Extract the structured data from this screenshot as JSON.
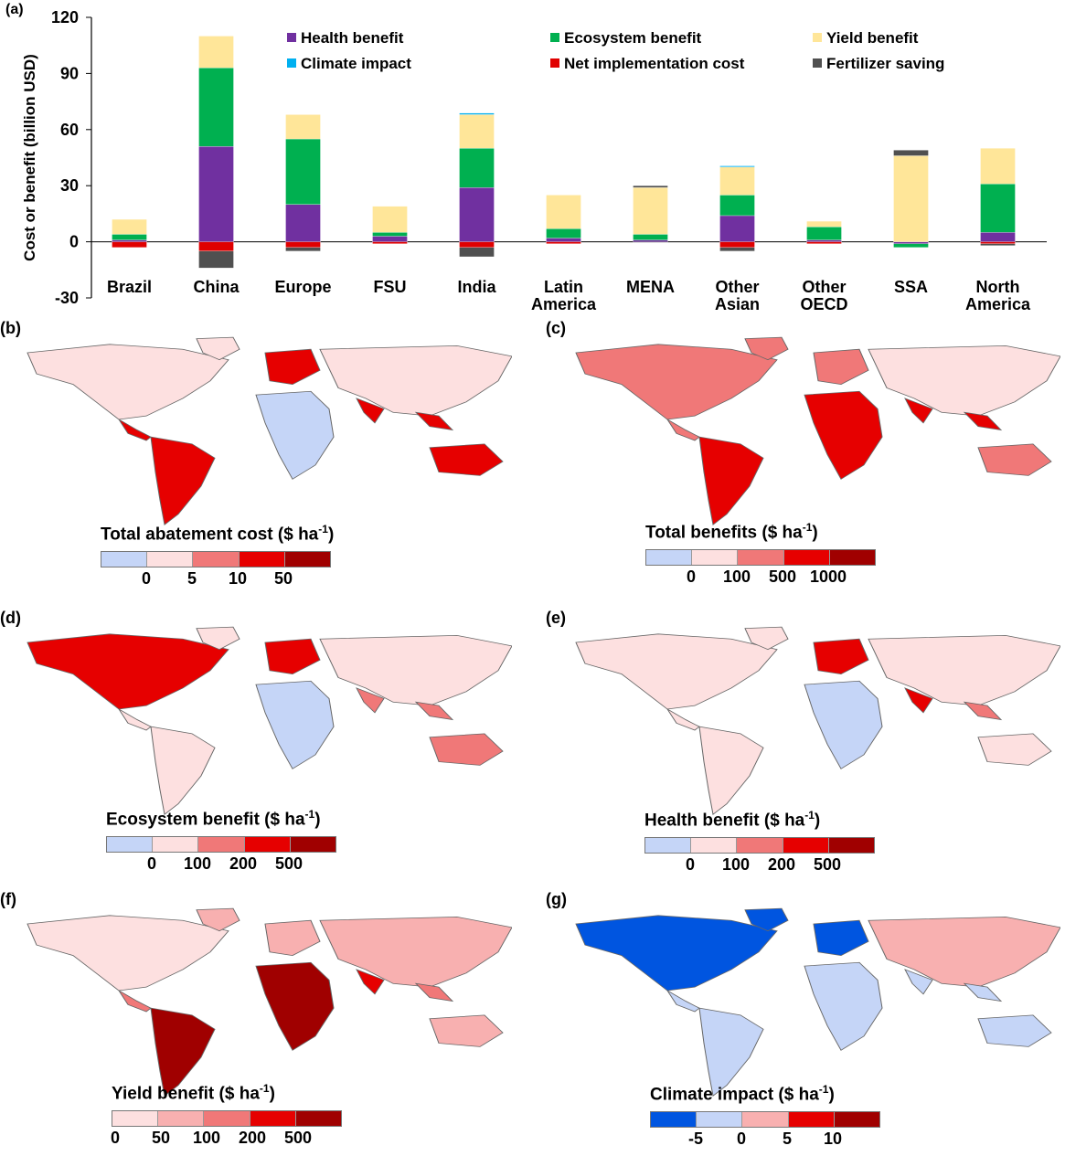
{
  "chart_data": {
    "type": "bar",
    "panel_label": "(a)",
    "stacked": true,
    "ylabel": "Cost or benefit (billion USD)",
    "ylim": [
      -30,
      120
    ],
    "yticks": [
      "120",
      "90",
      "60",
      "30",
      "0",
      "-30"
    ],
    "yticks_values": [
      120,
      90,
      60,
      30,
      0,
      -30
    ],
    "categories": [
      "Brazil",
      "China",
      "Europe",
      "FSU",
      "India",
      "Latin\nAmerica",
      "MENA",
      "Other\nAsian",
      "Other\nOECD",
      "SSA",
      "North\nAmerica"
    ],
    "series": [
      {
        "name": "Health benefit",
        "color": "#7030a0",
        "values": [
          1,
          51,
          20,
          3,
          29,
          2,
          1,
          14,
          1,
          -1,
          5
        ]
      },
      {
        "name": "Ecosystem benefit",
        "color": "#00b050",
        "values": [
          3,
          42,
          35,
          2,
          21,
          5,
          3,
          11,
          7,
          -2,
          26
        ]
      },
      {
        "name": "Yield benefit",
        "color": "#ffe699",
        "values": [
          8,
          17,
          13,
          14,
          18,
          18,
          25,
          15,
          3,
          46,
          19
        ]
      },
      {
        "name": "Climate impact",
        "color": "#00b0f0",
        "values": [
          0,
          0,
          0,
          0,
          0.8,
          0,
          0,
          0.6,
          0,
          0,
          0
        ]
      },
      {
        "name": "Net implementation cost",
        "color": "#e00000",
        "values": [
          -3,
          -5,
          -3,
          -1,
          -3,
          -1,
          0,
          -3,
          -1,
          0,
          -1
        ]
      },
      {
        "name": "Fertilizer saving",
        "color": "#505050",
        "values": [
          0,
          -9,
          -2,
          0,
          -5,
          0,
          1,
          -2,
          0,
          3,
          -1
        ]
      }
    ],
    "legend_order": [
      "Health benefit",
      "Ecosystem benefit",
      "Yield benefit",
      "Climate impact",
      "Net implementation cost",
      "Fertilizer saving"
    ],
    "legend_placement": "top-right, inside plot"
  },
  "maps": [
    {
      "id": "b",
      "label": "(b)",
      "title": "Total abatement cost ($ ha",
      "unit_sup": "-1",
      "title_end": ")",
      "colors": [
        "#c5d5f7",
        "#fde0e0",
        "#f07878",
        "#e60000",
        "#a00000"
      ],
      "ticks": [
        "0",
        "5",
        "10",
        "50"
      ]
    },
    {
      "id": "c",
      "label": "(c)",
      "title": "Total benefits ($ ha",
      "unit_sup": "-1",
      "title_end": ")",
      "colors": [
        "#c5d5f7",
        "#fde0e0",
        "#f07878",
        "#e60000",
        "#a00000"
      ],
      "ticks": [
        "0",
        "100",
        "500",
        "1000"
      ]
    },
    {
      "id": "d",
      "label": "(d)",
      "title": "Ecosystem benefit ($ ha",
      "unit_sup": "-1",
      "title_end": ")",
      "colors": [
        "#c5d5f7",
        "#fde0e0",
        "#f07878",
        "#e60000",
        "#a00000"
      ],
      "ticks": [
        "0",
        "100",
        "200",
        "500"
      ]
    },
    {
      "id": "e",
      "label": "(e)",
      "title": "Health benefit ($ ha",
      "unit_sup": "-1",
      "title_end": ")",
      "colors": [
        "#c5d5f7",
        "#fde0e0",
        "#f07878",
        "#e60000",
        "#a00000"
      ],
      "ticks": [
        "0",
        "100",
        "200",
        "500"
      ]
    },
    {
      "id": "f",
      "label": "(f)",
      "title": "Yield benefit ($ ha",
      "unit_sup": "-1",
      "title_end": ")",
      "colors": [
        "#fde0e0",
        "#f8b0b0",
        "#f07878",
        "#e60000",
        "#a00000"
      ],
      "ticks": [
        "0",
        "50",
        "100",
        "200",
        "500"
      ]
    },
    {
      "id": "g",
      "label": "(g)",
      "title": "Climate impact ($ ha",
      "unit_sup": "-1",
      "title_end": ")",
      "colors": [
        "#0055e0",
        "#c5d5f7",
        "#f8b0b0",
        "#e60000",
        "#a00000"
      ],
      "ticks": [
        "-5",
        "0",
        "5",
        "10"
      ]
    }
  ]
}
